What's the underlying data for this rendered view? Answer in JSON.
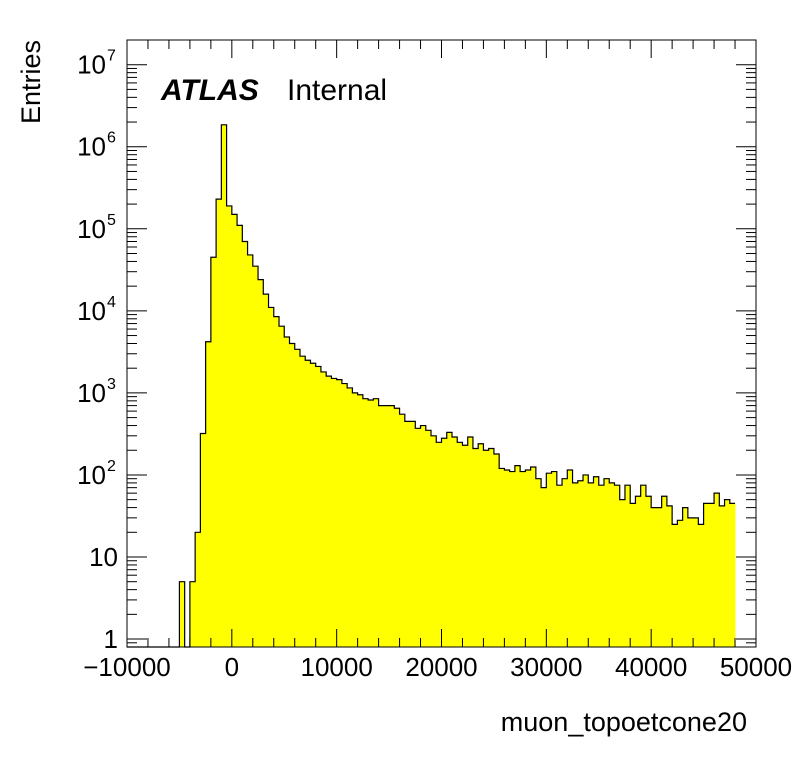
{
  "chart_data": {
    "type": "bar",
    "histogram": true,
    "title": "",
    "xlabel": "muon_topoetcone20",
    "ylabel": "Entries",
    "annotation": {
      "experiment": "ATLAS",
      "status": "Internal"
    },
    "xlim": [
      -10000,
      50000
    ],
    "ylim": [
      0.8,
      20000000
    ],
    "y_scale": "log",
    "grid": false,
    "fill_color": "#ffff00",
    "line_color": "#000000",
    "x_ticks": [
      {
        "value": -10000,
        "label": "−10000"
      },
      {
        "value": 0,
        "label": "0"
      },
      {
        "value": 10000,
        "label": "10000"
      },
      {
        "value": 20000,
        "label": "20000"
      },
      {
        "value": 30000,
        "label": "30000"
      },
      {
        "value": 40000,
        "label": "40000"
      },
      {
        "value": 50000,
        "label": "50000"
      }
    ],
    "y_ticks": [
      {
        "value": 1,
        "base": "1",
        "exp": ""
      },
      {
        "value": 10,
        "base": "10",
        "exp": ""
      },
      {
        "value": 100,
        "base": "10",
        "exp": "2"
      },
      {
        "value": 1000,
        "base": "10",
        "exp": "3"
      },
      {
        "value": 10000,
        "base": "10",
        "exp": "4"
      },
      {
        "value": 100000,
        "base": "10",
        "exp": "5"
      },
      {
        "value": 1000000,
        "base": "10",
        "exp": "6"
      },
      {
        "value": 10000000,
        "base": "10",
        "exp": "7"
      }
    ],
    "bin_width": 500,
    "x_start": -10000,
    "values": [
      0,
      0,
      0,
      0,
      0,
      0,
      0,
      0,
      0,
      0,
      5,
      0,
      5,
      20,
      320,
      4200,
      45000,
      230000,
      1850000,
      190000,
      150000,
      110000,
      70000,
      48000,
      35000,
      24000,
      16000,
      11000,
      8500,
      6500,
      4800,
      4000,
      3400,
      2800,
      2500,
      2300,
      2100,
      1800,
      1600,
      1500,
      1450,
      1300,
      1150,
      1000,
      950,
      850,
      820,
      850,
      700,
      700,
      700,
      650,
      550,
      450,
      450,
      370,
      400,
      350,
      300,
      250,
      280,
      330,
      290,
      250,
      230,
      290,
      210,
      240,
      200,
      210,
      180,
      120,
      115,
      110,
      130,
      110,
      115,
      125,
      90,
      70,
      105,
      110,
      75,
      90,
      115,
      80,
      85,
      100,
      80,
      95,
      75,
      90,
      80,
      75,
      50,
      75,
      45,
      55,
      75,
      55,
      40,
      40,
      55,
      42,
      25,
      28,
      40,
      30,
      30,
      25,
      45,
      45,
      60,
      42,
      50,
      45
    ]
  }
}
